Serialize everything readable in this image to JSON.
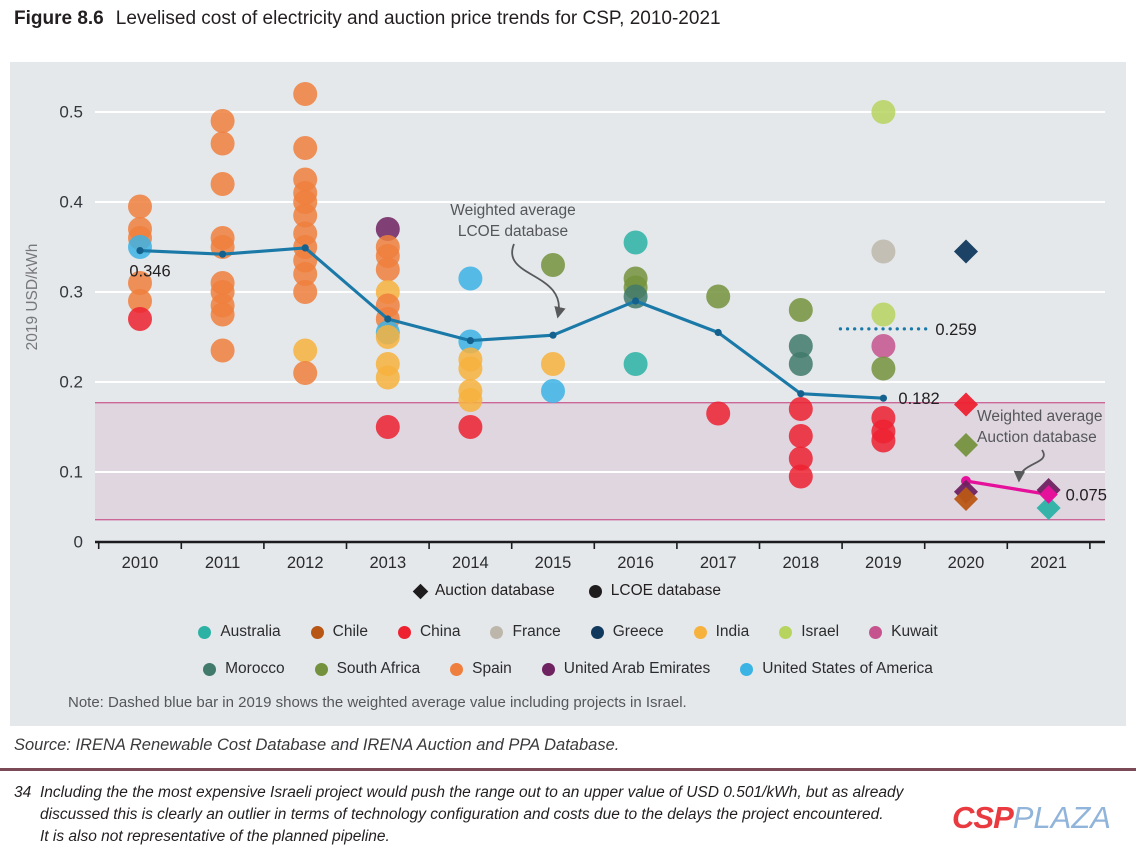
{
  "title": {
    "number": "Figure 8.6",
    "text": "Levelised cost of electricity and auction price trends for CSP, 2010-2021"
  },
  "chart": {
    "note": "Note: Dashed blue bar in 2019 shows the weighted average value including projects in Israel."
  },
  "annotations": {
    "lcoe_avg": {
      "line1": "Weighted average",
      "line2": "LCOE database"
    },
    "auction_avg": {
      "line1": "Weighted average",
      "line2": "Auction database"
    }
  },
  "db_legend": [
    {
      "shape": "diamond",
      "label": "Auction database"
    },
    {
      "shape": "circle",
      "label": "LCOE database"
    }
  ],
  "country_legend_rows": [
    [
      "Australia",
      "Chile",
      "China",
      "France",
      "Greece",
      "India",
      "Israel",
      "Kuwait"
    ],
    [
      "Morocco",
      "South Africa",
      "Spain",
      "United Arab Emirates",
      "United States of America"
    ]
  ],
  "source": "Source: IRENA Renewable Cost Database and IRENA Auction and PPA Database.",
  "footnote": {
    "number": "34",
    "lines": [
      "Including the the most expensive Israeli project would push the range out to an upper value of USD 0.501/kWh, but as already",
      "discussed this is clearly an outlier in terms of technology configuration and costs due to the delays the project encountered.",
      "It is also not representative of the planned pipeline."
    ]
  },
  "logo": {
    "csp": "CSP",
    "plaza": "PLAZA"
  },
  "chart_data": {
    "type": "scatter",
    "title": "Levelised cost of electricity and auction price trends for CSP, 2010-2021",
    "ylabel": "2019 USD/kWh",
    "ylim": [
      0,
      0.55
    ],
    "yticks": [
      0,
      0.1,
      0.2,
      0.3,
      0.4,
      0.5
    ],
    "x_categories": [
      "2010",
      "2011",
      "2012",
      "2013",
      "2014",
      "2015",
      "2016",
      "2017",
      "2018",
      "2019",
      "2020",
      "2021"
    ],
    "grid": "horizontal-white",
    "legend_position": "bottom",
    "country_colors": {
      "Australia": "#2cb2a5",
      "Chile": "#b85715",
      "China": "#ed2130",
      "France": "#bdb7ab",
      "Greece": "#11395e",
      "India": "#f7b13d",
      "Israel": "#b7d45f",
      "Kuwait": "#c5538e",
      "Morocco": "#41796b",
      "South Africa": "#74923d",
      "Spain": "#ef7f3d",
      "United Arab Emirates": "#6f2260",
      "United States of America": "#3cb3e5"
    },
    "lcoe_points": [
      {
        "year": "2010",
        "country": "Spain",
        "value": 0.395
      },
      {
        "year": "2010",
        "country": "Spain",
        "value": 0.37
      },
      {
        "year": "2010",
        "country": "Spain",
        "value": 0.36
      },
      {
        "year": "2010",
        "country": "United States of America",
        "value": 0.35
      },
      {
        "year": "2010",
        "country": "Spain",
        "value": 0.31
      },
      {
        "year": "2010",
        "country": "Spain",
        "value": 0.29
      },
      {
        "year": "2010",
        "country": "China",
        "value": 0.27
      },
      {
        "year": "2011",
        "country": "Spain",
        "value": 0.49
      },
      {
        "year": "2011",
        "country": "Spain",
        "value": 0.465
      },
      {
        "year": "2011",
        "country": "Spain",
        "value": 0.42
      },
      {
        "year": "2011",
        "country": "Spain",
        "value": 0.36
      },
      {
        "year": "2011",
        "country": "Spain",
        "value": 0.35
      },
      {
        "year": "2011",
        "country": "Spain",
        "value": 0.31
      },
      {
        "year": "2011",
        "country": "Spain",
        "value": 0.3
      },
      {
        "year": "2011",
        "country": "Spain",
        "value": 0.285
      },
      {
        "year": "2011",
        "country": "Spain",
        "value": 0.275
      },
      {
        "year": "2011",
        "country": "Spain",
        "value": 0.235
      },
      {
        "year": "2012",
        "country": "Spain",
        "value": 0.52
      },
      {
        "year": "2012",
        "country": "Spain",
        "value": 0.46
      },
      {
        "year": "2012",
        "country": "Spain",
        "value": 0.425
      },
      {
        "year": "2012",
        "country": "Spain",
        "value": 0.41
      },
      {
        "year": "2012",
        "country": "Spain",
        "value": 0.4
      },
      {
        "year": "2012",
        "country": "Spain",
        "value": 0.385
      },
      {
        "year": "2012",
        "country": "Spain",
        "value": 0.365
      },
      {
        "year": "2012",
        "country": "Spain",
        "value": 0.35
      },
      {
        "year": "2012",
        "country": "Spain",
        "value": 0.335
      },
      {
        "year": "2012",
        "country": "Spain",
        "value": 0.32
      },
      {
        "year": "2012",
        "country": "Spain",
        "value": 0.3
      },
      {
        "year": "2012",
        "country": "India",
        "value": 0.235
      },
      {
        "year": "2012",
        "country": "Spain",
        "value": 0.21
      },
      {
        "year": "2013",
        "country": "United Arab Emirates",
        "value": 0.37
      },
      {
        "year": "2013",
        "country": "Spain",
        "value": 0.35
      },
      {
        "year": "2013",
        "country": "Spain",
        "value": 0.34
      },
      {
        "year": "2013",
        "country": "Spain",
        "value": 0.325
      },
      {
        "year": "2013",
        "country": "India",
        "value": 0.3
      },
      {
        "year": "2013",
        "country": "Spain",
        "value": 0.285
      },
      {
        "year": "2013",
        "country": "Spain",
        "value": 0.27
      },
      {
        "year": "2013",
        "country": "United States of America",
        "value": 0.255
      },
      {
        "year": "2013",
        "country": "India",
        "value": 0.25
      },
      {
        "year": "2013",
        "country": "India",
        "value": 0.22
      },
      {
        "year": "2013",
        "country": "India",
        "value": 0.205
      },
      {
        "year": "2013",
        "country": "China",
        "value": 0.15
      },
      {
        "year": "2014",
        "country": "United States of America",
        "value": 0.315
      },
      {
        "year": "2014",
        "country": "United States of America",
        "value": 0.245
      },
      {
        "year": "2014",
        "country": "India",
        "value": 0.225
      },
      {
        "year": "2014",
        "country": "India",
        "value": 0.215
      },
      {
        "year": "2014",
        "country": "India",
        "value": 0.19
      },
      {
        "year": "2014",
        "country": "India",
        "value": 0.18
      },
      {
        "year": "2014",
        "country": "China",
        "value": 0.15
      },
      {
        "year": "2015",
        "country": "South Africa",
        "value": 0.33
      },
      {
        "year": "2015",
        "country": "India",
        "value": 0.22
      },
      {
        "year": "2015",
        "country": "United States of America",
        "value": 0.19
      },
      {
        "year": "2016",
        "country": "Australia",
        "value": 0.355
      },
      {
        "year": "2016",
        "country": "South Africa",
        "value": 0.315
      },
      {
        "year": "2016",
        "country": "South Africa",
        "value": 0.305
      },
      {
        "year": "2016",
        "country": "Morocco",
        "value": 0.295
      },
      {
        "year": "2016",
        "country": "Australia",
        "value": 0.22
      },
      {
        "year": "2017",
        "country": "South Africa",
        "value": 0.295
      },
      {
        "year": "2017",
        "country": "China",
        "value": 0.165
      },
      {
        "year": "2018",
        "country": "South Africa",
        "value": 0.28
      },
      {
        "year": "2018",
        "country": "Morocco",
        "value": 0.24
      },
      {
        "year": "2018",
        "country": "Morocco",
        "value": 0.22
      },
      {
        "year": "2018",
        "country": "China",
        "value": 0.17
      },
      {
        "year": "2018",
        "country": "China",
        "value": 0.14
      },
      {
        "year": "2018",
        "country": "China",
        "value": 0.115
      },
      {
        "year": "2018",
        "country": "China",
        "value": 0.095
      },
      {
        "year": "2019",
        "country": "Israel",
        "value": 0.5
      },
      {
        "year": "2019",
        "country": "France",
        "value": 0.345
      },
      {
        "year": "2019",
        "country": "Israel",
        "value": 0.275
      },
      {
        "year": "2019",
        "country": "Kuwait",
        "value": 0.24
      },
      {
        "year": "2019",
        "country": "South Africa",
        "value": 0.215
      },
      {
        "year": "2019",
        "country": "China",
        "value": 0.16
      },
      {
        "year": "2019",
        "country": "China",
        "value": 0.145
      },
      {
        "year": "2019",
        "country": "China",
        "value": 0.135
      }
    ],
    "auction_points": [
      {
        "year": "2020",
        "country": "Greece",
        "value": 0.345
      },
      {
        "year": "2020",
        "country": "China",
        "value": 0.175
      },
      {
        "year": "2020",
        "country": "South Africa",
        "value": 0.13
      },
      {
        "year": "2020",
        "country": "United Arab Emirates",
        "value": 0.078
      },
      {
        "year": "2020",
        "country": "Chile",
        "value": 0.07
      },
      {
        "year": "2021",
        "country": "United Arab Emirates",
        "value": 0.08
      },
      {
        "year": "2021",
        "country": "Australia",
        "value": 0.06
      }
    ],
    "lcoe_weighted_avg": {
      "color": "#1b79a8",
      "years": [
        "2010",
        "2011",
        "2012",
        "2013",
        "2014",
        "2015",
        "2016",
        "2017",
        "2018",
        "2019"
      ],
      "values": [
        0.346,
        0.342,
        0.349,
        0.27,
        0.246,
        0.252,
        0.29,
        0.255,
        0.187,
        0.182
      ],
      "first_label": "0.346",
      "last_label": "0.182"
    },
    "auction_weighted_avg": {
      "color": "#e5119b",
      "years": [
        "2020",
        "2021"
      ],
      "values": [
        0.09,
        0.075
      ],
      "last_label": "0.075"
    },
    "israel_dashed_2019": {
      "year": "2019",
      "value": 0.259,
      "label": "0.259",
      "style": "dotted-blue"
    },
    "auction_price_band": {
      "top": 0.177,
      "bottom": 0.047,
      "fill": "rgba(198,108,164,0.14)",
      "line": "#cb6697"
    }
  }
}
